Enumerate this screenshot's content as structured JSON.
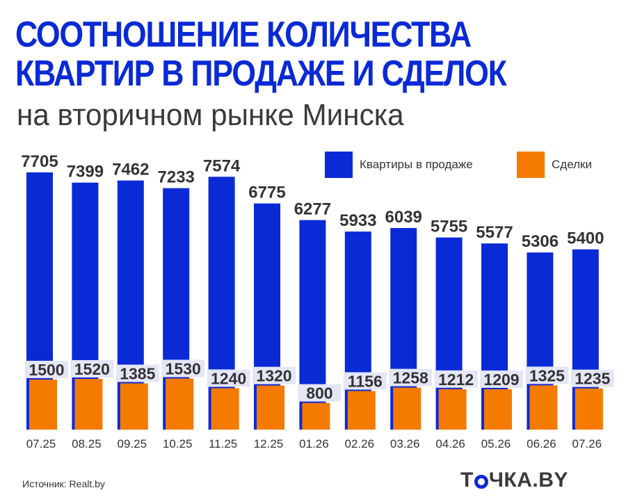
{
  "header": {
    "title_line1": "СООТНОШЕНИЕ КОЛИЧЕСТВА",
    "title_line2": "КВАРТИР В ПРОДАЖЕ И СДЕЛОК",
    "subtitle": "на вторичном рынке Минска"
  },
  "footer": {
    "source": "Источник: Realt.by",
    "logo_part1": "Т",
    "logo_ring_letter": "О",
    "logo_part2": "ЧКА.BY"
  },
  "colors": {
    "listings": "#0a2ad6",
    "deals": "#f47a00",
    "label_bg": "#e4e6f6",
    "text_dark": "#333333"
  },
  "chart_data": {
    "type": "bar",
    "title": "СООТНОШЕНИЕ КОЛИЧЕСТВА КВАРТИР В ПРОДАЖЕ И СДЕЛОК",
    "subtitle": "на вторичном рынке Минска",
    "categories": [
      "07.25",
      "08.25",
      "09.25",
      "10.25",
      "11.25",
      "12.25",
      "01.26",
      "02.26",
      "03.26",
      "04.26",
      "05.26",
      "06.26",
      "07.26"
    ],
    "series": [
      {
        "name": "Квартиры в продаже",
        "color": "#0a2ad6",
        "values": [
          7705,
          7399,
          7462,
          7233,
          7574,
          6775,
          6277,
          5933,
          6039,
          5755,
          5577,
          5306,
          5400
        ]
      },
      {
        "name": "Сделки",
        "color": "#f47a00",
        "values": [
          1500,
          1520,
          1385,
          1530,
          1240,
          1320,
          800,
          1156,
          1258,
          1212,
          1209,
          1325,
          1235
        ]
      }
    ],
    "overlay": true,
    "ylim": [
      0,
      7705
    ],
    "grid": false,
    "legend_position": "top-right",
    "xlabel": "",
    "ylabel": ""
  }
}
